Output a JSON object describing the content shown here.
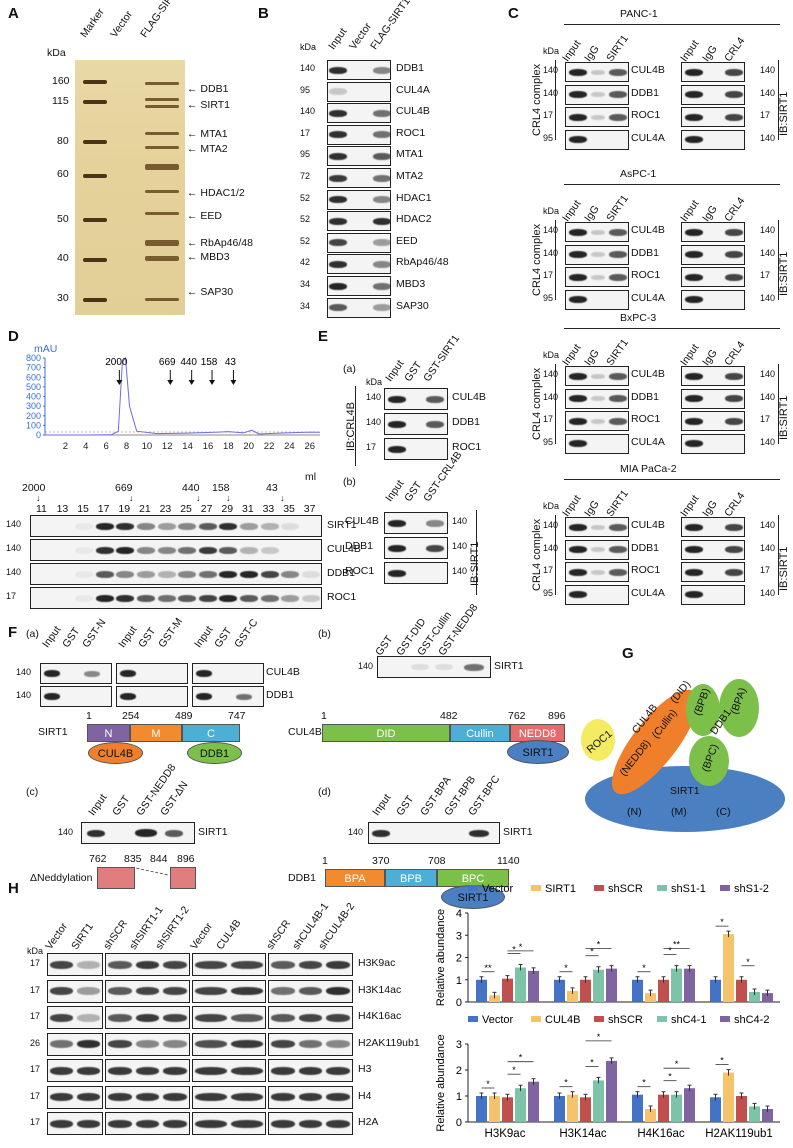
{
  "panelA": {
    "label": "A",
    "kda": "kDa",
    "lanes": [
      "Marker",
      "Vector",
      "FLAG-SIRT1"
    ],
    "markers": [
      "160",
      "115",
      "80",
      "60",
      "50",
      "40",
      "30"
    ],
    "annotations": [
      "DDB1",
      "SIRT1",
      "MTA1",
      "MTA2",
      "HDAC1/2",
      "EED",
      "RbAp46/48",
      "MBD3",
      "SAP30"
    ]
  },
  "panelB": {
    "label": "B",
    "kda": "kDa",
    "lanes": [
      "Input",
      "Vector",
      "FLAG-SIRT1"
    ],
    "rows": [
      {
        "kda": "140",
        "name": "DDB1"
      },
      {
        "kda": "95",
        "name": "CUL4A"
      },
      {
        "kda": "140",
        "name": "CUL4B"
      },
      {
        "kda": "17",
        "name": "ROC1"
      },
      {
        "kda": "95",
        "name": "MTA1"
      },
      {
        "kda": "72",
        "name": "MTA2"
      },
      {
        "kda": "52",
        "name": "HDAC1"
      },
      {
        "kda": "52",
        "name": "HDAC2"
      },
      {
        "kda": "52",
        "name": "EED"
      },
      {
        "kda": "42",
        "name": "RbAp46/48"
      },
      {
        "kda": "34",
        "name": "MBD3"
      },
      {
        "kda": "34",
        "name": "SAP30"
      }
    ]
  },
  "panelC": {
    "label": "C",
    "kda": "kDa",
    "lanesLeft": [
      "Input",
      "IgG",
      "SIRT1"
    ],
    "lanesRight": [
      "Input",
      "IgG",
      "CRL4"
    ],
    "complexLabel": "CRL4 complex",
    "ibLabel": "IB:SIRT1",
    "cellLines": [
      "PANC-1",
      "AsPC-1",
      "BxPC-3",
      "MIA PaCa-2"
    ],
    "rows": [
      {
        "kda": "140",
        "name": "CUL4B"
      },
      {
        "kda": "140",
        "name": "DDB1"
      },
      {
        "kda": "17",
        "name": "ROC1"
      },
      {
        "kda": "95",
        "name": "CUL4A"
      }
    ],
    "rightKda": [
      "140",
      "140",
      "17",
      "140"
    ]
  },
  "panelD": {
    "label": "D",
    "yAxisLabel": "mAU",
    "yTicks": [
      "800",
      "700",
      "600",
      "500",
      "400",
      "300",
      "200",
      "100",
      "0"
    ],
    "xTicks": [
      "2",
      "4",
      "6",
      "8",
      "10",
      "12",
      "14",
      "16",
      "18",
      "20",
      "22",
      "24",
      "26"
    ],
    "xUnit": "ml",
    "sizeMarkers": [
      "2000",
      "669",
      "440",
      "158",
      "43"
    ],
    "fractions": [
      "11",
      "13",
      "15",
      "17",
      "19",
      "21",
      "23",
      "25",
      "27",
      "29",
      "31",
      "33",
      "35",
      "37"
    ],
    "blotMarkers": [
      "2000",
      "669",
      "440",
      "158",
      "43"
    ],
    "rows": [
      {
        "kda": "140",
        "name": "SIRT1"
      },
      {
        "kda": "140",
        "name": "CUL4B"
      },
      {
        "kda": "140",
        "name": "DDB1"
      },
      {
        "kda": "17",
        "name": "ROC1"
      }
    ]
  },
  "chart_data": [
    {
      "type": "line",
      "title": "",
      "xlabel": "ml",
      "ylabel": "mAU",
      "x": [
        0,
        4,
        6.5,
        7.2,
        7.6,
        7.9,
        8.3,
        9,
        11,
        14,
        17,
        18,
        19.5,
        20.3,
        21,
        23,
        26,
        27
      ],
      "y": [
        0,
        0,
        2,
        40,
        760,
        800,
        300,
        40,
        15,
        20,
        30,
        35,
        22,
        50,
        10,
        20,
        30,
        28
      ],
      "xlim": [
        0,
        27
      ],
      "ylim": [
        0,
        800
      ]
    },
    {
      "type": "bar",
      "title": "",
      "ylabel": "Relative abundance",
      "categories": [
        "H3K9ac",
        "H3K14ac",
        "H4K16ac",
        "H2AK119ub1"
      ],
      "ylim": [
        0,
        4
      ],
      "series": [
        {
          "name": "Vector",
          "values": [
            1.0,
            1.0,
            1.0,
            1.0
          ]
        },
        {
          "name": "SIRT1",
          "values": [
            0.3,
            0.5,
            0.4,
            3.05
          ]
        },
        {
          "name": "shSCR",
          "values": [
            1.05,
            1.0,
            1.0,
            1.0
          ]
        },
        {
          "name": "shS1-1",
          "values": [
            1.55,
            1.45,
            1.5,
            0.45
          ]
        },
        {
          "name": "shS1-2",
          "values": [
            1.4,
            1.5,
            1.5,
            0.4
          ]
        }
      ]
    },
    {
      "type": "bar",
      "title": "",
      "ylabel": "Relative abundance",
      "categories": [
        "H3K9ac",
        "H3K14ac",
        "H4K16ac",
        "H2AK119ub1"
      ],
      "ylim": [
        0,
        3
      ],
      "series": [
        {
          "name": "Vector",
          "values": [
            1.0,
            1.0,
            1.05,
            0.95
          ]
        },
        {
          "name": "CUL4B",
          "values": [
            1.0,
            1.05,
            0.5,
            1.9
          ]
        },
        {
          "name": "shSCR",
          "values": [
            0.95,
            0.95,
            1.05,
            1.0
          ]
        },
        {
          "name": "shC4-1",
          "values": [
            1.3,
            1.6,
            1.05,
            0.6
          ]
        },
        {
          "name": "shC4-2",
          "values": [
            1.55,
            2.35,
            1.3,
            0.5
          ]
        }
      ]
    }
  ],
  "panelE": {
    "label": "E",
    "a": {
      "sub": "(a)",
      "lanes": [
        "Input",
        "GST",
        "GST-SIRT1"
      ],
      "ib": "IB:CRL4B",
      "kda": "kDa",
      "rows": [
        {
          "kda": "140",
          "name": "CUL4B"
        },
        {
          "kda": "140",
          "name": "DDB1"
        },
        {
          "kda": "17",
          "name": "ROC1"
        }
      ]
    },
    "b": {
      "sub": "(b)",
      "lanes": [
        "Input",
        "GST",
        "GST-CRL4B"
      ],
      "ib": "IB:SIRT1",
      "kda": "kDa",
      "rows": [
        {
          "kda": "140",
          "name": "CUL4B"
        },
        {
          "kda": "140",
          "name": "DDB1"
        },
        {
          "kda": "140",
          "name": "ROC1"
        }
      ]
    }
  },
  "panelF": {
    "label": "F",
    "a": {
      "sub": "(a)",
      "groups": [
        [
          "Input",
          "GST",
          "GST-N"
        ],
        [
          "Input",
          "GST",
          "GST-M"
        ],
        [
          "Input",
          "GST",
          "GST-C"
        ]
      ],
      "rows": [
        {
          "kda": "140",
          "name": "CUL4B"
        },
        {
          "kda": "140",
          "name": "DDB1"
        }
      ],
      "protein": "SIRT1",
      "positions": [
        "1",
        "254",
        "489",
        "747"
      ],
      "domains": [
        "N",
        "M",
        "C"
      ],
      "binders": [
        "CUL4B",
        "DDB1"
      ]
    },
    "b": {
      "sub": "(b)",
      "lanes": [
        "GST",
        "GST-DID",
        "GST-Cullin",
        "GST-NEDD8"
      ],
      "row": {
        "kda": "140",
        "name": "SIRT1"
      },
      "protein": "CUL4B",
      "positions": [
        "1",
        "482",
        "762",
        "896"
      ],
      "domains": [
        "DID",
        "Cullin",
        "NEDD8"
      ],
      "binder": "SIRT1"
    },
    "c": {
      "sub": "(c)",
      "lanes": [
        "Input",
        "GST",
        "GST-NEDD8",
        "GST-ΔN"
      ],
      "row": {
        "kda": "140",
        "name": "SIRT1"
      },
      "positions": [
        "762",
        "835",
        "844",
        "896"
      ],
      "deletion": "ΔNeddylation"
    },
    "d": {
      "sub": "(d)",
      "lanes": [
        "Input",
        "GST",
        "GST-BPA",
        "GST-BPB",
        "GST-BPC"
      ],
      "row": {
        "kda": "140",
        "name": "SIRT1"
      },
      "protein": "DDB1",
      "positions": [
        "1",
        "370",
        "708",
        "1140"
      ],
      "domains": [
        "BPA",
        "BPB",
        "BPC"
      ],
      "binder": "SIRT1"
    }
  },
  "panelG": {
    "label": "G",
    "roc1": "ROC1",
    "cul4b": [
      "CUL4B",
      "(Cullin)",
      "(DID)",
      "(NEDD8)"
    ],
    "ddb1": [
      "DDB1",
      "(BPB)",
      "(BPA)",
      "(BPC)"
    ],
    "sirt1": [
      "SIRT1",
      "(N)",
      "(M)",
      "(C)"
    ]
  },
  "panelH": {
    "label": "H",
    "kda": "kDa",
    "groups": [
      [
        "Vector",
        "SIRT1"
      ],
      [
        "shSCR",
        "shSIRT1-1",
        "shSIRT1-2"
      ],
      [
        "Vector",
        "CUL4B"
      ],
      [
        "shSCR",
        "shCUL4B-1",
        "shCUL4B-2"
      ]
    ],
    "rows": [
      {
        "kda": "17",
        "name": "H3K9ac"
      },
      {
        "kda": "17",
        "name": "H3K14ac"
      },
      {
        "kda": "17",
        "name": "H4K16ac"
      },
      {
        "kda": "26",
        "name": "H2AK119ub1"
      },
      {
        "kda": "17",
        "name": "H3"
      },
      {
        "kda": "17",
        "name": "H4"
      },
      {
        "kda": "17",
        "name": "H2A"
      }
    ],
    "chart1Ticks": [
      "4",
      "3",
      "2",
      "1",
      "0"
    ],
    "chart2Ticks": [
      "3",
      "2",
      "1",
      "0"
    ],
    "sig1": [
      "**",
      "*",
      "*",
      "*",
      "*",
      "*",
      "*",
      "*",
      "**",
      "*",
      "*"
    ],
    "sig2": [
      "*",
      "*",
      "*",
      "*",
      "*",
      "*",
      "*",
      "*",
      "*",
      "*"
    ]
  },
  "colors": {
    "vector": "#4472c4",
    "sirt1": "#f5c36b",
    "shscr": "#c0504d",
    "sh1": "#7cc3a8",
    "sh2": "#8064a2",
    "sirt1Blue": "#4a7fc1",
    "cul4bOrange": "#f07f2c",
    "ddb1Green": "#7cc04a",
    "roc1Yellow": "#f3ec62"
  }
}
